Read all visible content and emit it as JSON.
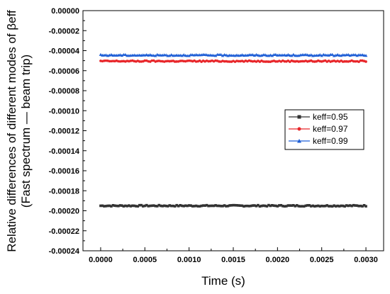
{
  "chart_data": {
    "type": "line",
    "xlabel": "Time (s)",
    "ylabel_line1": "Relative differences of different modes of βeff",
    "ylabel_line2": "(Fast spectrum — beam trip)",
    "xlim": [
      -0.0002,
      0.0032
    ],
    "ylim": [
      -0.00024,
      0.0
    ],
    "x_ticks": [
      "0.0000",
      "0.0005",
      "0.0010",
      "0.0015",
      "0.0020",
      "0.0025",
      "0.0030"
    ],
    "x_tick_values": [
      0.0,
      0.0005,
      0.001,
      0.0015,
      0.002,
      0.0025,
      0.003
    ],
    "y_ticks": [
      "0.00000",
      "-0.00002",
      "-0.00004",
      "-0.00006",
      "-0.00008",
      "-0.00010",
      "-0.00012",
      "-0.00014",
      "-0.00016",
      "-0.00018",
      "-0.00020",
      "-0.00022",
      "-0.00024"
    ],
    "y_tick_values": [
      0.0,
      -2e-05,
      -4e-05,
      -6e-05,
      -8e-05,
      -0.0001,
      -0.00012,
      -0.00014,
      -0.00016,
      -0.00018,
      -0.0002,
      -0.00022,
      -0.00024
    ],
    "x_range": [
      0.0,
      0.003
    ],
    "legend_position": "center-right",
    "series": [
      {
        "name": "keff=0.95",
        "color": "#333333",
        "marker": "square",
        "mean": -0.000195,
        "noise": 6e-07
      },
      {
        "name": "keff=0.97",
        "color": "#e8262a",
        "marker": "circle",
        "mean": -5.05e-05,
        "noise": 6e-07
      },
      {
        "name": "keff=0.99",
        "color": "#1f5fd6",
        "marker": "triangle",
        "mean": -4.45e-05,
        "noise": 6e-07
      }
    ]
  }
}
